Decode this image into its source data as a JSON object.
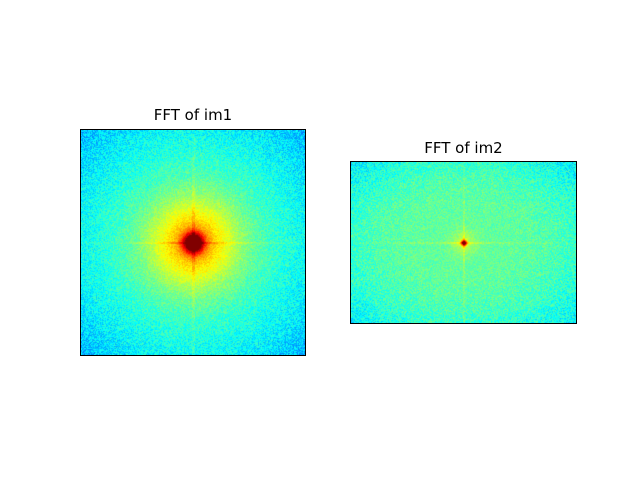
{
  "chart_data": [
    {
      "type": "heatmap",
      "title": "FFT of im1",
      "colormap": "jet",
      "axes_visible": false,
      "aspect": "square",
      "spectrum": {
        "center_level": 1.0,
        "background_level": 0.43,
        "corner_level": 0.3,
        "core_sharpness": "broad",
        "cross_lines": true,
        "noise": 0.05
      }
    },
    {
      "type": "heatmap",
      "title": "FFT of im2",
      "colormap": "jet",
      "axes_visible": false,
      "aspect": "landscape",
      "spectrum": {
        "center_level": 1.0,
        "background_level": 0.47,
        "corner_level": 0.36,
        "core_sharpness": "sharp",
        "cross_lines": true,
        "noise": 0.05
      }
    }
  ]
}
